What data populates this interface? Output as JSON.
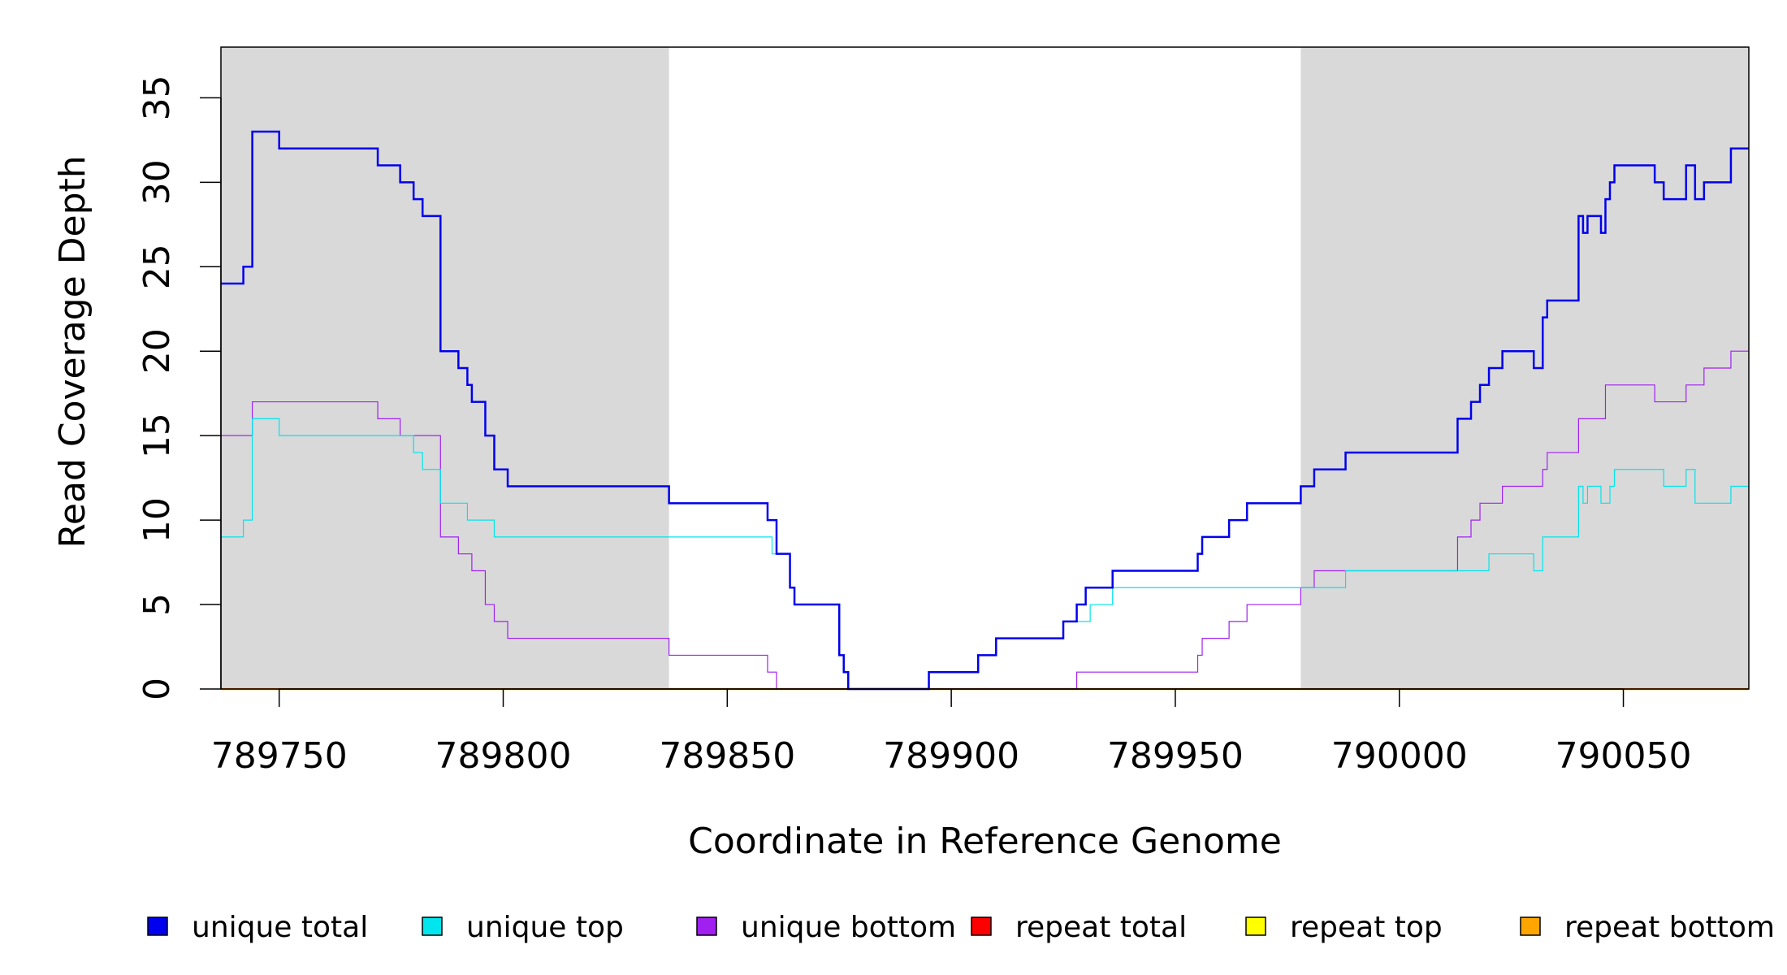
{
  "chart_data": {
    "type": "line",
    "title": "",
    "xlabel": "Coordinate in Reference Genome",
    "ylabel": "Read Coverage Depth",
    "xlim": [
      789737,
      790078
    ],
    "ylim": [
      0,
      38
    ],
    "x_ticks": [
      789750,
      789800,
      789850,
      789900,
      789950,
      790000,
      790050
    ],
    "y_ticks": [
      0,
      5,
      10,
      15,
      20,
      25,
      30,
      35
    ],
    "grid": false,
    "shaded_regions": [
      {
        "x": [
          789737,
          789837
        ],
        "color": "#d9d9d9"
      },
      {
        "x": [
          789978,
          790078
        ],
        "color": "#d9d9d9"
      }
    ],
    "legend_position": "bottom",
    "series": [
      {
        "name": "unique total",
        "color": "#0000ee",
        "width": 2.5,
        "steps": [
          [
            789737,
            24
          ],
          [
            789742,
            25
          ],
          [
            789744,
            33
          ],
          [
            789750,
            32
          ],
          [
            789772,
            31
          ],
          [
            789777,
            30
          ],
          [
            789780,
            29
          ],
          [
            789782,
            28
          ],
          [
            789786,
            20
          ],
          [
            789790,
            19
          ],
          [
            789792,
            18
          ],
          [
            789793,
            17
          ],
          [
            789796,
            15
          ],
          [
            789798,
            13
          ],
          [
            789801,
            12
          ],
          [
            789837,
            11
          ],
          [
            789859,
            10
          ],
          [
            789861,
            8
          ],
          [
            789864,
            6
          ],
          [
            789865,
            5
          ],
          [
            789875,
            2
          ],
          [
            789876,
            1
          ],
          [
            789877,
            0
          ],
          [
            789895,
            1
          ],
          [
            789906,
            2
          ],
          [
            789910,
            3
          ],
          [
            789925,
            4
          ],
          [
            789928,
            5
          ],
          [
            789930,
            6
          ],
          [
            789936,
            7
          ],
          [
            789955,
            8
          ],
          [
            789956,
            9
          ],
          [
            789962,
            10
          ],
          [
            789966,
            11
          ],
          [
            789978,
            12
          ],
          [
            789981,
            13
          ],
          [
            789988,
            14
          ],
          [
            790013,
            16
          ],
          [
            790016,
            17
          ],
          [
            790018,
            18
          ],
          [
            790020,
            19
          ],
          [
            790023,
            20
          ],
          [
            790030,
            19
          ],
          [
            790032,
            22
          ],
          [
            790033,
            23
          ],
          [
            790040,
            28
          ],
          [
            790041,
            27
          ],
          [
            790042,
            28
          ],
          [
            790045,
            27
          ],
          [
            790046,
            29
          ],
          [
            790047,
            30
          ],
          [
            790048,
            31
          ],
          [
            790057,
            30
          ],
          [
            790059,
            29
          ],
          [
            790064,
            31
          ],
          [
            790066,
            29
          ],
          [
            790068,
            30
          ],
          [
            790074,
            32
          ],
          [
            790078,
            32
          ]
        ]
      },
      {
        "name": "unique top",
        "color": "#00e5ee",
        "width": 1.2,
        "steps": [
          [
            789737,
            9
          ],
          [
            789742,
            10
          ],
          [
            789744,
            16
          ],
          [
            789750,
            15
          ],
          [
            789780,
            14
          ],
          [
            789782,
            13
          ],
          [
            789786,
            11
          ],
          [
            789792,
            10
          ],
          [
            789798,
            9
          ],
          [
            789837,
            9
          ],
          [
            789860,
            8
          ],
          [
            789864,
            6
          ],
          [
            789865,
            5
          ],
          [
            789875,
            2
          ],
          [
            789876,
            1
          ],
          [
            789877,
            0
          ],
          [
            789895,
            1
          ],
          [
            789906,
            2
          ],
          [
            789910,
            3
          ],
          [
            789925,
            4
          ],
          [
            789931,
            5
          ],
          [
            789936,
            6
          ],
          [
            789978,
            6
          ],
          [
            789988,
            7
          ],
          [
            790020,
            8
          ],
          [
            790030,
            7
          ],
          [
            790032,
            9
          ],
          [
            790040,
            12
          ],
          [
            790041,
            11
          ],
          [
            790042,
            12
          ],
          [
            790045,
            11
          ],
          [
            790047,
            12
          ],
          [
            790048,
            13
          ],
          [
            790059,
            12
          ],
          [
            790064,
            13
          ],
          [
            790066,
            11
          ],
          [
            790074,
            12
          ],
          [
            790078,
            12
          ]
        ]
      },
      {
        "name": "unique bottom",
        "color": "#a020f0",
        "width": 1.2,
        "steps": [
          [
            789737,
            15
          ],
          [
            789744,
            17
          ],
          [
            789772,
            16
          ],
          [
            789777,
            15
          ],
          [
            789786,
            9
          ],
          [
            789790,
            8
          ],
          [
            789793,
            7
          ],
          [
            789796,
            5
          ],
          [
            789798,
            4
          ],
          [
            789801,
            3
          ],
          [
            789837,
            2
          ],
          [
            789859,
            1
          ],
          [
            789861,
            0
          ],
          [
            789928,
            1
          ],
          [
            789955,
            2
          ],
          [
            789956,
            3
          ],
          [
            789962,
            4
          ],
          [
            789966,
            5
          ],
          [
            789978,
            6
          ],
          [
            789981,
            7
          ],
          [
            790013,
            9
          ],
          [
            790016,
            10
          ],
          [
            790018,
            11
          ],
          [
            790023,
            12
          ],
          [
            790032,
            13
          ],
          [
            790033,
            14
          ],
          [
            790040,
            16
          ],
          [
            790046,
            18
          ],
          [
            790057,
            17
          ],
          [
            790064,
            18
          ],
          [
            790068,
            19
          ],
          [
            790074,
            20
          ],
          [
            790078,
            20
          ]
        ]
      },
      {
        "name": "repeat total",
        "color": "#ff0000",
        "width": 1.5,
        "steps": [
          [
            789737,
            0
          ],
          [
            790078,
            0
          ]
        ]
      },
      {
        "name": "repeat top",
        "color": "#ffff00",
        "width": 1.5,
        "steps": [
          [
            789737,
            0
          ],
          [
            790078,
            0
          ]
        ]
      },
      {
        "name": "repeat bottom",
        "color": "#ffa500",
        "width": 2.5,
        "steps": [
          [
            789737,
            0
          ],
          [
            790078,
            0
          ]
        ]
      }
    ]
  }
}
